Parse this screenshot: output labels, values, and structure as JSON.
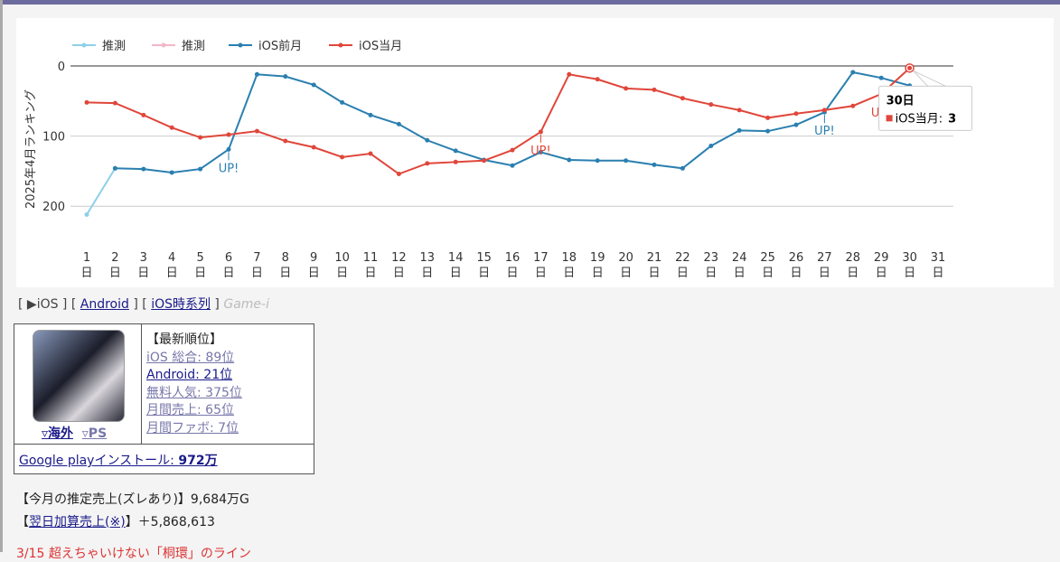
{
  "chart_data": {
    "type": "line",
    "y_label": "2025年4月ランキング",
    "categories": [
      "1日",
      "2日",
      "3日",
      "4日",
      "5日",
      "6日",
      "7日",
      "8日",
      "9日",
      "10日",
      "11日",
      "12日",
      "13日",
      "14日",
      "15日",
      "16日",
      "17日",
      "18日",
      "19日",
      "20日",
      "21日",
      "22日",
      "23日",
      "24日",
      "25日",
      "26日",
      "27日",
      "28日",
      "29日",
      "30日",
      "31日"
    ],
    "ylim": [
      0,
      250
    ],
    "yticks": [
      0,
      100,
      200
    ],
    "y_reversed": true,
    "grid": true,
    "legend": "top-left",
    "series": [
      {
        "name": "推測",
        "color": "#8ecfe8",
        "values": [
          212,
          146,
          null,
          null,
          null,
          null,
          null,
          null,
          null,
          null,
          null,
          null,
          null,
          null,
          null,
          null,
          null,
          null,
          null,
          null,
          null,
          null,
          null,
          null,
          null,
          null,
          null,
          null,
          null,
          null,
          null
        ]
      },
      {
        "name": "推測",
        "color": "#f4b6c8",
        "values": [
          null,
          null,
          null,
          null,
          null,
          null,
          null,
          null,
          null,
          null,
          null,
          null,
          null,
          null,
          null,
          null,
          null,
          null,
          null,
          null,
          null,
          null,
          null,
          null,
          null,
          null,
          null,
          null,
          null,
          null,
          null
        ]
      },
      {
        "name": "iOS前月",
        "color": "#2a7fb0",
        "values": [
          null,
          146,
          147,
          152,
          147,
          119,
          12,
          15,
          27,
          52,
          70,
          83,
          106,
          121,
          134,
          142,
          123,
          134,
          135,
          135,
          141,
          146,
          114,
          92,
          93,
          84,
          66,
          9,
          17,
          28,
          null
        ]
      },
      {
        "name": "iOS当月",
        "color": "#e0463a",
        "values": [
          52,
          53,
          70,
          88,
          102,
          98,
          93,
          107,
          116,
          130,
          125,
          154,
          139,
          137,
          135,
          120,
          94,
          12,
          19,
          32,
          34,
          46,
          55,
          63,
          74,
          68,
          63,
          57,
          40,
          3,
          null
        ]
      }
    ],
    "annotations": [
      {
        "text": "UP!",
        "series": 2,
        "index": 5
      },
      {
        "text": "UP!",
        "series": 3,
        "index": 16
      },
      {
        "text": "UP!",
        "series": 2,
        "index": 26
      },
      {
        "text": "UP!",
        "series": 3,
        "index": 28
      }
    ],
    "tooltip": {
      "title": "30日",
      "label": "iOS当月:",
      "series": 3,
      "index": 29
    }
  },
  "nav": {
    "items": [
      "▶iOS",
      "Android",
      "iOS時系列"
    ],
    "brand": "Game-i"
  },
  "info": {
    "links": [
      "▿海外",
      "▿PS"
    ],
    "heading": "【最新順位】",
    "ranks": [
      "iOS 総合: 89位",
      "Android: 21位",
      "無料人気: 375位",
      "月間売上: 65位",
      "月間ファボ: 7位"
    ],
    "install_label": "Google playインストール: ",
    "install_value": "972万"
  },
  "sales": {
    "estimate": "【今月の推定売上(ズレあり)】9,684万G",
    "next_open": "【",
    "next_link": "翌日加算売上(※)",
    "next_rest": "】＋5,868,613",
    "news": "3/15 超えちゃいけない「桐環」のライン"
  }
}
